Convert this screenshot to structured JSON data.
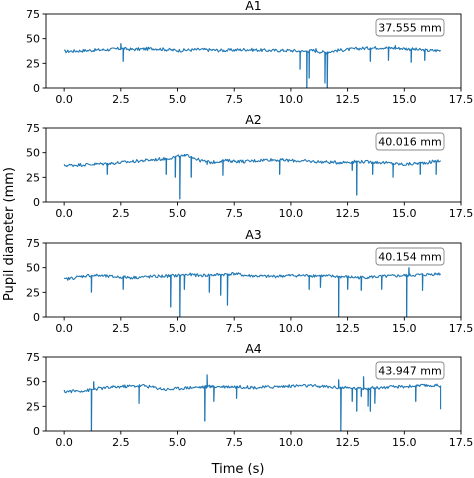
{
  "figure": {
    "ylabel": "Pupil diameter (mm)",
    "xlabel": "Time (s)"
  },
  "chart_data": [
    {
      "type": "line",
      "title": "A1",
      "annotation": "37.555 mm",
      "xlim": [
        -0.8,
        17.5
      ],
      "ylim": [
        0,
        75
      ],
      "xticks": [
        "0.0",
        "2.5",
        "5.0",
        "7.5",
        "10.0",
        "12.5",
        "15.0",
        "17.5"
      ],
      "yticks": [
        "0",
        "25",
        "50",
        "75"
      ],
      "grid": false,
      "series": [
        {
          "color": "#1f77b4",
          "baseline": [
            [
              0,
              37
            ],
            [
              1,
              38
            ],
            [
              2,
              39
            ],
            [
              2.5,
              40
            ],
            [
              3,
              39
            ],
            [
              4,
              40
            ],
            [
              5,
              38
            ],
            [
              6,
              39
            ],
            [
              7,
              38
            ],
            [
              8,
              39
            ],
            [
              9,
              38
            ],
            [
              10,
              38
            ],
            [
              10.5,
              37
            ],
            [
              11,
              38
            ],
            [
              11.5,
              36
            ],
            [
              12,
              38
            ],
            [
              13,
              40
            ],
            [
              14,
              41
            ],
            [
              15,
              40
            ],
            [
              16,
              38
            ],
            [
              16.6,
              38
            ]
          ],
          "spikes": [
            [
              2.5,
              45
            ],
            [
              2.6,
              27
            ],
            [
              10.4,
              19
            ],
            [
              10.7,
              0
            ],
            [
              10.8,
              10
            ],
            [
              11.1,
              40
            ],
            [
              11.5,
              5
            ],
            [
              11.6,
              0
            ],
            [
              13.5,
              27
            ],
            [
              14.3,
              28
            ],
            [
              14.6,
              43
            ],
            [
              15.3,
              26
            ],
            [
              15.9,
              28
            ]
          ]
        }
      ]
    },
    {
      "type": "line",
      "title": "A2",
      "annotation": "40.016 mm",
      "xlim": [
        -0.8,
        17.5
      ],
      "ylim": [
        0,
        75
      ],
      "xticks": [
        "0.0",
        "2.5",
        "5.0",
        "7.5",
        "10.0",
        "12.5",
        "15.0",
        "17.5"
      ],
      "yticks": [
        "0",
        "25",
        "50",
        "75"
      ],
      "grid": false,
      "series": [
        {
          "color": "#1f77b4",
          "baseline": [
            [
              0,
              37
            ],
            [
              1,
              38
            ],
            [
              2,
              39
            ],
            [
              3,
              41
            ],
            [
              4,
              43
            ],
            [
              4.5,
              44
            ],
            [
              5,
              46
            ],
            [
              5.5,
              47
            ],
            [
              6,
              42
            ],
            [
              6.5,
              40
            ],
            [
              7,
              42
            ],
            [
              8,
              41
            ],
            [
              9,
              43
            ],
            [
              10,
              42
            ],
            [
              11,
              41
            ],
            [
              12,
              40
            ],
            [
              13,
              41
            ],
            [
              14,
              40
            ],
            [
              15,
              38
            ],
            [
              16,
              40
            ],
            [
              16.6,
              42
            ]
          ],
          "spikes": [
            [
              1.9,
              28
            ],
            [
              4.5,
              28
            ],
            [
              4.9,
              25
            ],
            [
              5.1,
              3
            ],
            [
              5.3,
              48
            ],
            [
              5.6,
              25
            ],
            [
              6.3,
              38
            ],
            [
              7.0,
              27
            ],
            [
              7.4,
              40
            ],
            [
              9.5,
              28
            ],
            [
              12.7,
              32
            ],
            [
              12.9,
              7
            ],
            [
              13.6,
              28
            ],
            [
              14.5,
              25
            ],
            [
              15.7,
              28
            ],
            [
              16.4,
              28
            ]
          ]
        }
      ]
    },
    {
      "type": "line",
      "title": "A3",
      "annotation": "40.154 mm",
      "xlim": [
        -0.8,
        17.5
      ],
      "ylim": [
        0,
        75
      ],
      "xticks": [
        "0.0",
        "2.5",
        "5.0",
        "7.5",
        "10.0",
        "12.5",
        "15.0",
        "17.5"
      ],
      "yticks": [
        "0",
        "25",
        "50",
        "75"
      ],
      "grid": false,
      "series": [
        {
          "color": "#1f77b4",
          "baseline": [
            [
              0,
              38
            ],
            [
              0.5,
              40
            ],
            [
              1,
              42
            ],
            [
              1.5,
              42
            ],
            [
              2,
              41
            ],
            [
              3,
              40
            ],
            [
              4,
              41
            ],
            [
              5,
              42
            ],
            [
              5.5,
              43
            ],
            [
              6,
              42
            ],
            [
              7,
              43
            ],
            [
              7.5,
              44
            ],
            [
              8,
              42
            ],
            [
              9,
              41
            ],
            [
              10,
              42
            ],
            [
              11,
              42
            ],
            [
              12,
              41
            ],
            [
              13,
              40
            ],
            [
              14,
              41
            ],
            [
              15,
              42
            ],
            [
              16,
              43
            ],
            [
              16.6,
              44
            ]
          ],
          "spikes": [
            [
              1.2,
              25
            ],
            [
              2.6,
              28
            ],
            [
              4.7,
              10
            ],
            [
              5.1,
              0
            ],
            [
              5.3,
              28
            ],
            [
              6.4,
              25
            ],
            [
              6.9,
              22
            ],
            [
              7.2,
              12
            ],
            [
              10.8,
              28
            ],
            [
              11.3,
              30
            ],
            [
              12.1,
              0
            ],
            [
              12.5,
              28
            ],
            [
              13.1,
              27
            ],
            [
              14.0,
              28
            ],
            [
              15.1,
              0
            ],
            [
              15.2,
              50
            ],
            [
              15.8,
              27
            ]
          ]
        }
      ]
    },
    {
      "type": "line",
      "title": "A4",
      "annotation": "43.947 mm",
      "xlim": [
        -0.8,
        17.5
      ],
      "ylim": [
        0,
        75
      ],
      "xticks": [
        "0.0",
        "2.5",
        "5.0",
        "7.5",
        "10.0",
        "12.5",
        "15.0",
        "17.5"
      ],
      "yticks": [
        "0",
        "25",
        "50",
        "75"
      ],
      "grid": false,
      "series": [
        {
          "color": "#1f77b4",
          "baseline": [
            [
              0,
              40
            ],
            [
              1,
              41
            ],
            [
              1.5,
              43
            ],
            [
              2.5,
              45
            ],
            [
              3.5,
              46
            ],
            [
              4.5,
              42
            ],
            [
              5.5,
              44
            ],
            [
              6.5,
              45
            ],
            [
              7.5,
              45
            ],
            [
              8.5,
              44
            ],
            [
              9.5,
              45
            ],
            [
              10.5,
              46
            ],
            [
              11.5,
              45
            ],
            [
              12.1,
              44
            ],
            [
              13,
              43
            ],
            [
              14,
              44
            ],
            [
              15,
              45
            ],
            [
              16,
              46
            ],
            [
              16.6,
              46
            ]
          ],
          "spikes": [
            [
              1.2,
              0
            ],
            [
              1.3,
              50
            ],
            [
              3.3,
              28
            ],
            [
              6.2,
              10
            ],
            [
              6.3,
              57
            ],
            [
              6.6,
              30
            ],
            [
              7.6,
              33
            ],
            [
              12.1,
              52
            ],
            [
              12.2,
              0
            ],
            [
              12.7,
              30
            ],
            [
              12.9,
              20
            ],
            [
              13.1,
              35
            ],
            [
              13.2,
              55
            ],
            [
              13.4,
              25
            ],
            [
              13.5,
              20
            ],
            [
              13.7,
              28
            ],
            [
              15.5,
              30
            ],
            [
              16.6,
              22
            ]
          ]
        }
      ]
    }
  ]
}
